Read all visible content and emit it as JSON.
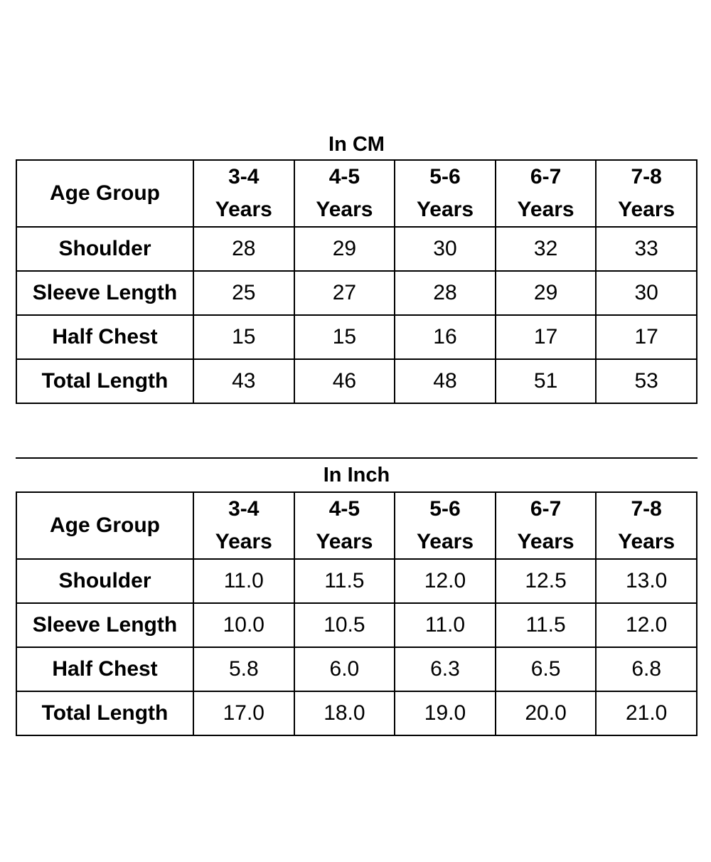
{
  "tables": [
    {
      "title": "In CM",
      "header_label": "Age Group",
      "columns": [
        {
          "line1": "3-4",
          "line2": "Years"
        },
        {
          "line1": "4-5",
          "line2": "Years"
        },
        {
          "line1": "5-6",
          "line2": "Years"
        },
        {
          "line1": "6-7",
          "line2": "Years"
        },
        {
          "line1": "7-8",
          "line2": "Years"
        }
      ],
      "rows": [
        {
          "label": "Shoulder",
          "values": [
            "28",
            "29",
            "30",
            "32",
            "33"
          ]
        },
        {
          "label": "Sleeve Length",
          "values": [
            "25",
            "27",
            "28",
            "29",
            "30"
          ]
        },
        {
          "label": "Half Chest",
          "values": [
            "15",
            "15",
            "16",
            "17",
            "17"
          ]
        },
        {
          "label": "Total Length",
          "values": [
            "43",
            "46",
            "48",
            "51",
            "53"
          ]
        }
      ]
    },
    {
      "title": "In Inch",
      "header_label": "Age Group",
      "columns": [
        {
          "line1": "3-4",
          "line2": "Years"
        },
        {
          "line1": "4-5",
          "line2": "Years"
        },
        {
          "line1": "5-6",
          "line2": "Years"
        },
        {
          "line1": "6-7",
          "line2": "Years"
        },
        {
          "line1": "7-8",
          "line2": "Years"
        }
      ],
      "rows": [
        {
          "label": "Shoulder",
          "values": [
            "11.0",
            "11.5",
            "12.0",
            "12.5",
            "13.0"
          ]
        },
        {
          "label": "Sleeve Length",
          "values": [
            "10.0",
            "10.5",
            "11.0",
            "11.5",
            "12.0"
          ]
        },
        {
          "label": "Half Chest",
          "values": [
            "5.8",
            "6.0",
            "6.3",
            "6.5",
            "6.8"
          ]
        },
        {
          "label": "Total Length",
          "values": [
            "17.0",
            "18.0",
            "19.0",
            "20.0",
            "21.0"
          ]
        }
      ]
    }
  ]
}
